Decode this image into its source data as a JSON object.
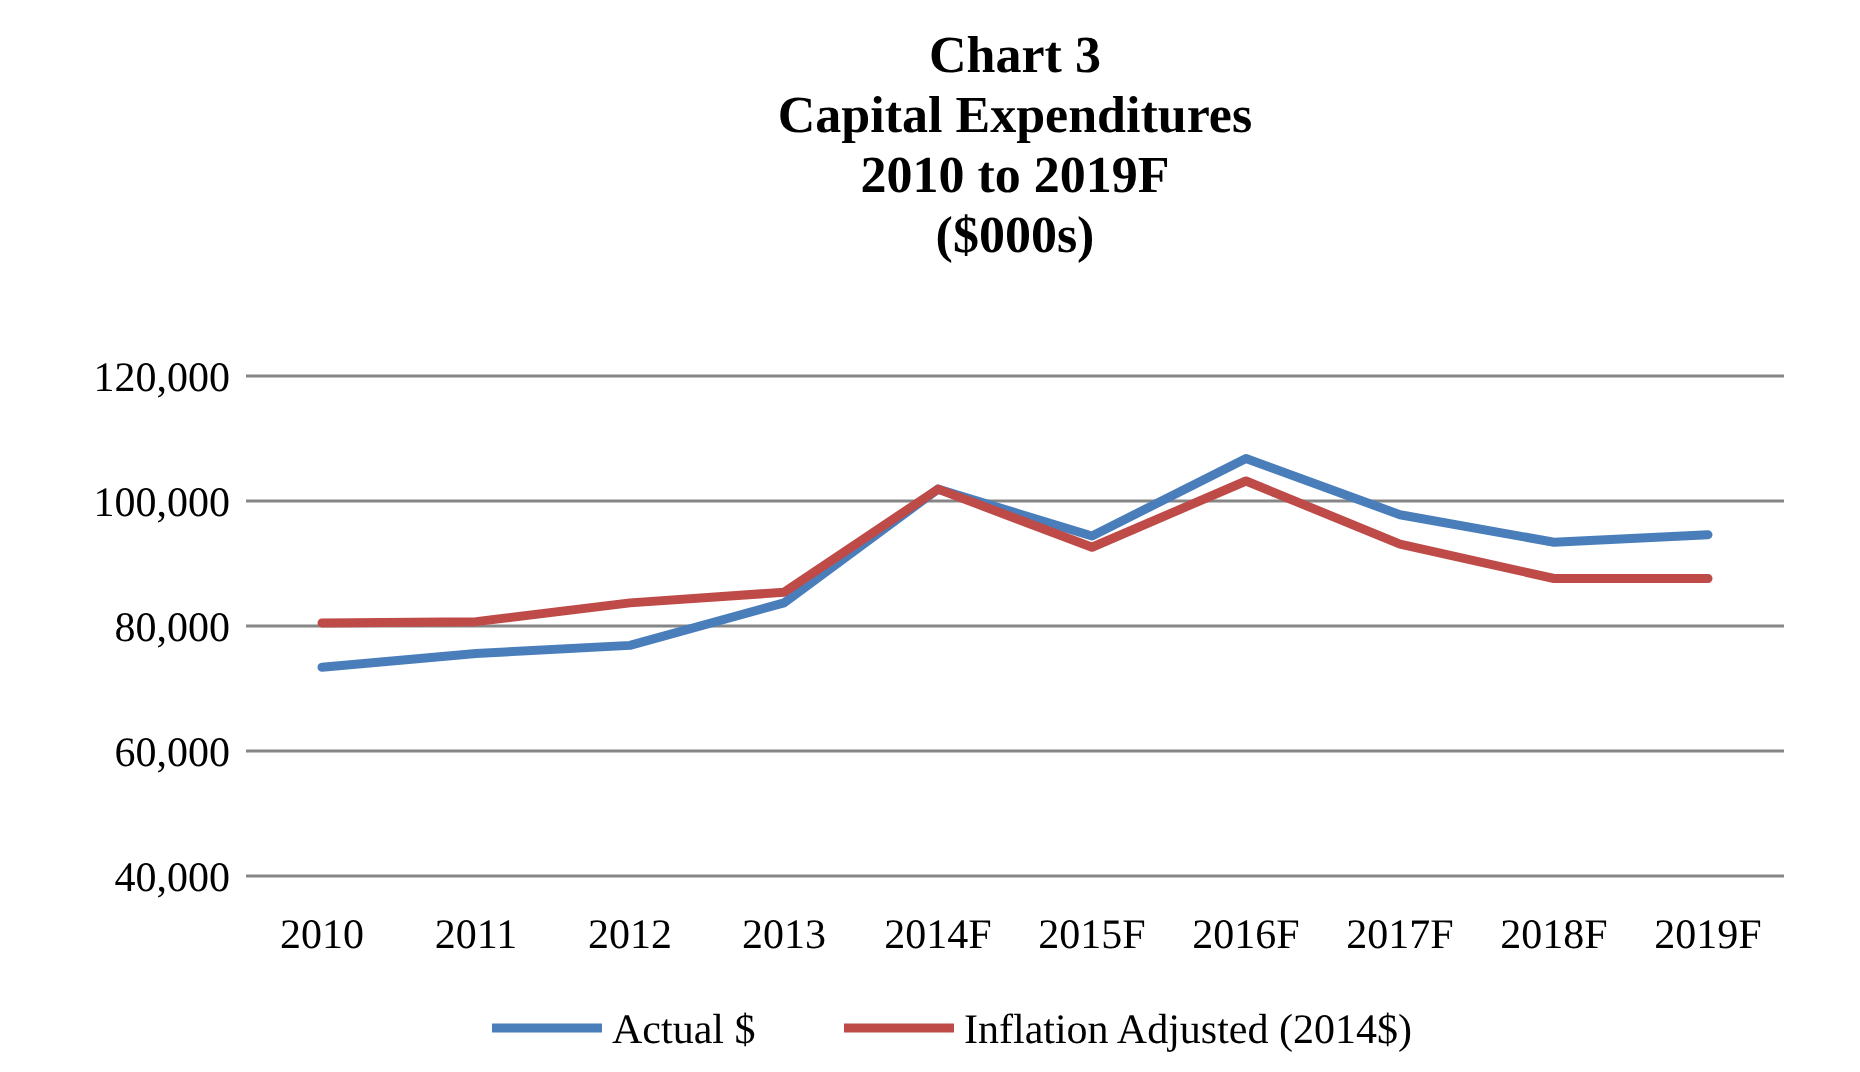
{
  "chart_data": {
    "type": "line",
    "title": "Chart 3\nCapital Expenditures\n2010 to 2019F\n($000s)",
    "categories": [
      "2010",
      "2011",
      "2012",
      "2013",
      "2014F",
      "2015F",
      "2016F",
      "2017F",
      "2018F",
      "2019F"
    ],
    "series": [
      {
        "name": "Actual $",
        "color": "#4a7ebb",
        "values": [
          73400,
          75600,
          76900,
          83700,
          101900,
          94400,
          106800,
          97800,
          93400,
          94600
        ]
      },
      {
        "name": "Inflation Adjusted (2014$)",
        "color": "#be4b48",
        "values": [
          80500,
          80700,
          83700,
          85400,
          101900,
          92600,
          103200,
          93100,
          87600,
          87600
        ]
      }
    ],
    "ylim": [
      40000,
      120000
    ],
    "yticks": [
      {
        "value": 40000,
        "label": "40,000"
      },
      {
        "value": 60000,
        "label": "60,000"
      },
      {
        "value": 80000,
        "label": "80,000"
      },
      {
        "value": 100000,
        "label": "100,000"
      },
      {
        "value": 120000,
        "label": "120,000"
      }
    ],
    "grid": "y",
    "legend": "bottom",
    "marker": "none",
    "line_style": "solid"
  }
}
